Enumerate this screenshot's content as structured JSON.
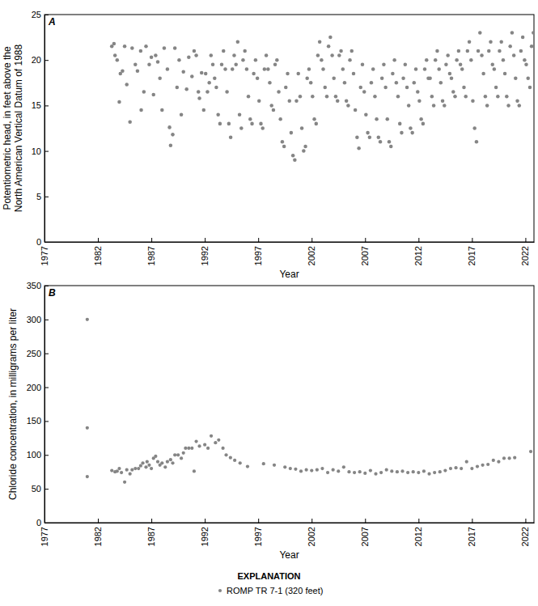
{
  "chart_data": [
    {
      "type": "scatter",
      "title": "A",
      "y_label": [
        "Potentiometric head, in feet above the",
        "North American Vertical Datum of 1988"
      ],
      "x_label": "Year",
      "color": "#858585",
      "marker": "circle",
      "xlim": [
        1977,
        2022.8
      ],
      "xticks": [
        1977,
        1982,
        1987,
        1992,
        1997,
        2002,
        2007,
        2012,
        2017,
        2022
      ],
      "ylim": [
        0,
        25
      ],
      "yticks": [
        0,
        5,
        10,
        15,
        20,
        25
      ],
      "x": [
        1983.3,
        1983.5,
        1983.6,
        1983.8,
        1984.0,
        1984.1,
        1984.3,
        1984.5,
        1984.7,
        1985.0,
        1985.2,
        1985.5,
        1985.7,
        1986.0,
        1986.05,
        1986.3,
        1986.5,
        1986.8,
        1987.0,
        1987.2,
        1987.4,
        1987.6,
        1987.8,
        1988.0,
        1988.2,
        1988.5,
        1988.7,
        1988.8,
        1989.0,
        1989.2,
        1989.4,
        1989.6,
        1989.8,
        1990.0,
        1990.3,
        1990.5,
        1990.8,
        1991.0,
        1991.2,
        1991.4,
        1991.5,
        1991.7,
        1991.9,
        1992.08,
        1992.25,
        1992.42,
        1992.58,
        1992.75,
        1992.92,
        1993.08,
        1993.25,
        1993.42,
        1993.58,
        1993.75,
        1993.92,
        1994.08,
        1994.25,
        1994.42,
        1994.58,
        1994.75,
        1994.92,
        1995.08,
        1995.25,
        1995.42,
        1995.58,
        1995.75,
        1995.92,
        1996.08,
        1996.25,
        1996.42,
        1996.58,
        1996.75,
        1996.92,
        1997.08,
        1997.25,
        1997.42,
        1997.58,
        1997.75,
        1997.92,
        1998.08,
        1998.25,
        1998.42,
        1998.58,
        1998.75,
        1998.92,
        1999.08,
        1999.25,
        1999.42,
        1999.58,
        1999.75,
        1999.92,
        2000.08,
        2000.25,
        2000.42,
        2000.58,
        2000.75,
        2000.92,
        2001.08,
        2001.25,
        2001.42,
        2001.58,
        2001.75,
        2001.92,
        2002.08,
        2002.25,
        2002.42,
        2002.58,
        2002.75,
        2002.92,
        2003.08,
        2003.25,
        2003.42,
        2003.58,
        2003.75,
        2003.92,
        2004.08,
        2004.25,
        2004.42,
        2004.58,
        2004.75,
        2004.92,
        2005.08,
        2005.25,
        2005.42,
        2005.58,
        2005.75,
        2005.92,
        2006.08,
        2006.25,
        2006.42,
        2006.58,
        2006.75,
        2006.92,
        2007.08,
        2007.25,
        2007.42,
        2007.58,
        2007.75,
        2007.92,
        2008.08,
        2008.25,
        2008.42,
        2008.58,
        2008.75,
        2008.92,
        2009.08,
        2009.25,
        2009.42,
        2009.58,
        2009.75,
        2009.92,
        2010.08,
        2010.25,
        2010.42,
        2010.58,
        2010.75,
        2010.92,
        2011.08,
        2011.25,
        2011.42,
        2011.58,
        2011.75,
        2011.92,
        2012.08,
        2012.25,
        2012.42,
        2012.58,
        2012.75,
        2012.92,
        2013.08,
        2013.25,
        2013.42,
        2013.58,
        2013.75,
        2013.92,
        2014.08,
        2014.25,
        2014.42,
        2014.58,
        2014.75,
        2014.92,
        2015.08,
        2015.25,
        2015.42,
        2015.58,
        2015.75,
        2015.92,
        2016.08,
        2016.25,
        2016.42,
        2016.58,
        2016.75,
        2016.92,
        2017.08,
        2017.25,
        2017.42,
        2017.58,
        2017.75,
        2017.92,
        2018.08,
        2018.25,
        2018.42,
        2018.58,
        2018.75,
        2018.92,
        2019.08,
        2019.25,
        2019.42,
        2019.58,
        2019.75,
        2019.92,
        2020.08,
        2020.25,
        2020.42,
        2020.58,
        2020.75,
        2020.92,
        2021.08,
        2021.25,
        2021.42,
        2021.58,
        2021.75,
        2021.92,
        2022.08,
        2022.25,
        2022.42,
        2022.58,
        2022.75
      ],
      "values": [
        21.5,
        21.8,
        20.5,
        20.0,
        15.4,
        18.5,
        18.8,
        21.5,
        17.3,
        13.2,
        21.3,
        19.5,
        18.8,
        21.0,
        14.5,
        16.5,
        21.5,
        19.5,
        20.3,
        16.2,
        20.5,
        19.8,
        18.0,
        14.5,
        21.3,
        19.0,
        12.6,
        10.6,
        11.8,
        21.3,
        17.0,
        20.0,
        14.0,
        18.7,
        16.8,
        20.3,
        18.2,
        21.0,
        20.5,
        16.5,
        15.8,
        18.6,
        14.5,
        18.5,
        16.5,
        17.5,
        20.5,
        19.5,
        18.0,
        17.0,
        14.0,
        13.0,
        19.5,
        21.0,
        19.0,
        16.5,
        13.0,
        11.5,
        19.0,
        20.5,
        19.5,
        22.0,
        14.0,
        12.5,
        20.0,
        21.0,
        19.0,
        16.0,
        13.5,
        13.0,
        18.5,
        20.0,
        18.0,
        15.5,
        13.0,
        12.5,
        19.0,
        20.5,
        19.0,
        17.5,
        15.0,
        14.5,
        19.5,
        20.0,
        16.5,
        13.5,
        11.0,
        10.5,
        17.0,
        18.5,
        15.5,
        12.0,
        9.5,
        9.0,
        15.5,
        18.5,
        16.0,
        12.5,
        10.0,
        10.5,
        18.0,
        19.0,
        17.5,
        16.0,
        13.5,
        13.0,
        20.5,
        22.0,
        20.0,
        19.0,
        17.0,
        16.0,
        21.5,
        22.5,
        20.5,
        18.0,
        16.0,
        15.5,
        20.5,
        21.0,
        19.0,
        17.5,
        15.5,
        15.0,
        20.0,
        21.0,
        18.5,
        14.5,
        11.5,
        10.3,
        17.0,
        19.5,
        16.5,
        14.0,
        12.0,
        11.5,
        17.5,
        19.0,
        16.0,
        13.5,
        11.5,
        11.0,
        18.0,
        19.5,
        17.0,
        13.5,
        11.0,
        10.5,
        18.5,
        20.0,
        17.5,
        16.0,
        13.0,
        12.0,
        18.0,
        19.5,
        17.0,
        15.0,
        12.5,
        12.0,
        17.5,
        19.0,
        16.5,
        15.5,
        13.5,
        13.0,
        19.0,
        20.0,
        18.0,
        18.0,
        16.0,
        15.0,
        20.0,
        21.0,
        19.0,
        17.5,
        15.5,
        15.0,
        19.5,
        20.5,
        18.5,
        18.0,
        16.5,
        16.0,
        20.0,
        21.0,
        19.5,
        19.0,
        17.0,
        16.0,
        21.0,
        22.0,
        20.0,
        15.5,
        12.5,
        11.0,
        21.0,
        23.0,
        20.5,
        18.5,
        16.0,
        15.0,
        21.0,
        22.0,
        19.5,
        19.0,
        17.0,
        16.0,
        21.0,
        22.0,
        20.0,
        18.5,
        16.0,
        15.0,
        21.5,
        23.0,
        20.5,
        18.0,
        15.5,
        15.0,
        21.0,
        22.5,
        20.0,
        19.5,
        18.0,
        17.0,
        21.5,
        23.0
      ]
    },
    {
      "type": "scatter",
      "title": "B",
      "y_label": [
        "Chloride concentration, in milligrams per liter"
      ],
      "x_label": "Year",
      "legend": "bottom",
      "legend_title": "EXPLANATION",
      "xlim": [
        1977,
        2022.8
      ],
      "xticks": [
        1977,
        1982,
        1987,
        1992,
        1997,
        2002,
        2007,
        2012,
        2017,
        2022
      ],
      "ylim": [
        0,
        350
      ],
      "yticks": [
        0,
        50,
        100,
        150,
        200,
        250,
        300,
        350
      ],
      "x": [
        1981,
        1981,
        1981,
        1983.3,
        1983.6,
        1983.8,
        1984.0,
        1984.2,
        1984.5,
        1984.7,
        1985.0,
        1985.2,
        1985.5,
        1985.8,
        1986.0,
        1986.2,
        1986.5,
        1986.6,
        1986.8,
        1987.0,
        1987.2,
        1987.4,
        1987.6,
        1987.8,
        1988.0,
        1988.3,
        1988.5,
        1988.8,
        1989.0,
        1989.2,
        1989.5,
        1989.8,
        1990.0,
        1990.2,
        1990.5,
        1990.8,
        1991.0,
        1991.2,
        1991.5,
        1992.0,
        1992.3,
        1992.6,
        1993.0,
        1993.3,
        1993.7,
        1994.0,
        1994.4,
        1994.8,
        1995.3,
        1996.0,
        1997.5,
        1998.5,
        1999.5,
        2000.0,
        2000.5,
        2001.0,
        2001.5,
        2002.0,
        2002.5,
        2003.0,
        2003.5,
        2004.0,
        2004.5,
        2005.0,
        2005.5,
        2006.0,
        2006.5,
        2007.0,
        2007.5,
        2008.0,
        2008.5,
        2009.0,
        2009.5,
        2010.0,
        2010.5,
        2011.0,
        2011.5,
        2012.0,
        2012.5,
        2013.0,
        2013.5,
        2014.0,
        2014.5,
        2015.0,
        2015.5,
        2016.0,
        2016.5,
        2017.0,
        2017.5,
        2018.0,
        2018.5,
        2019.0,
        2019.5,
        2020.0,
        2020.5,
        2021.0,
        2022.5
      ],
      "series": [
        {
          "name": "ROMP TR 7-1 (320 feet)",
          "color": "#858585",
          "marker": "circle",
          "values": [
            300,
            140,
            68,
            77,
            75,
            76,
            80,
            74,
            60,
            78,
            72,
            78,
            80,
            80,
            84,
            88,
            82,
            90,
            85,
            80,
            95,
            98,
            90,
            85,
            88,
            82,
            90,
            93,
            88,
            100,
            100,
            95,
            103,
            110,
            110,
            110,
            76,
            120,
            113,
            115,
            110,
            128,
            118,
            122,
            110,
            100,
            96,
            92,
            88,
            83,
            87,
            85,
            82,
            80,
            79,
            76,
            78,
            77,
            78,
            80,
            74,
            78,
            76,
            82,
            75,
            74,
            75,
            73,
            77,
            72,
            74,
            78,
            76,
            75,
            76,
            74,
            75,
            74,
            76,
            72,
            74,
            75,
            77,
            80,
            81,
            80,
            90,
            80,
            83,
            85,
            86,
            92,
            90,
            95,
            95,
            96,
            105
          ]
        }
      ]
    }
  ]
}
